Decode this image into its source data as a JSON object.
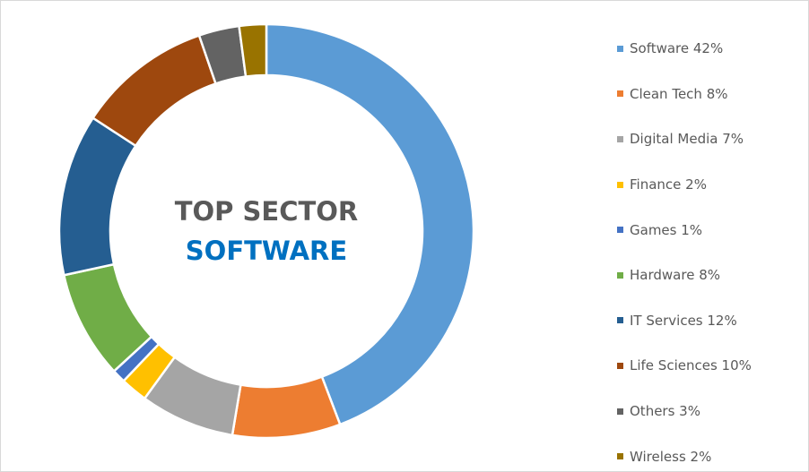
{
  "chart_data": {
    "type": "pie",
    "subtype": "donut",
    "center_title": "TOP SECTOR",
    "center_subtitle": "SOFTWARE",
    "legend_position": "right",
    "slices": [
      {
        "label": "Software",
        "value": 42,
        "legend": "Software 42%",
        "color": "#5B9BD5"
      },
      {
        "label": "Clean Tech",
        "value": 8,
        "legend": "Clean Tech 8%",
        "color": "#ED7D31"
      },
      {
        "label": "Digital Media",
        "value": 7,
        "legend": "Digital Media 7%",
        "color": "#A5A5A5"
      },
      {
        "label": "Finance",
        "value": 2,
        "legend": "Finance 2%",
        "color": "#FFC000"
      },
      {
        "label": "Games",
        "value": 1,
        "legend": "Games 1%",
        "color": "#4472C4"
      },
      {
        "label": "Hardware",
        "value": 8,
        "legend": "Hardware 8%",
        "color": "#70AD47"
      },
      {
        "label": "IT Services",
        "value": 12,
        "legend": "IT Services 12%",
        "color": "#255E91"
      },
      {
        "label": "Life Sciences",
        "value": 10,
        "legend": "Life Sciences 10%",
        "color": "#9E480E"
      },
      {
        "label": "Others",
        "value": 3,
        "legend": "Others 3%",
        "color": "#636363"
      },
      {
        "label": "Wireless",
        "value": 2,
        "legend": "Wireless 2%",
        "color": "#997300"
      }
    ]
  }
}
